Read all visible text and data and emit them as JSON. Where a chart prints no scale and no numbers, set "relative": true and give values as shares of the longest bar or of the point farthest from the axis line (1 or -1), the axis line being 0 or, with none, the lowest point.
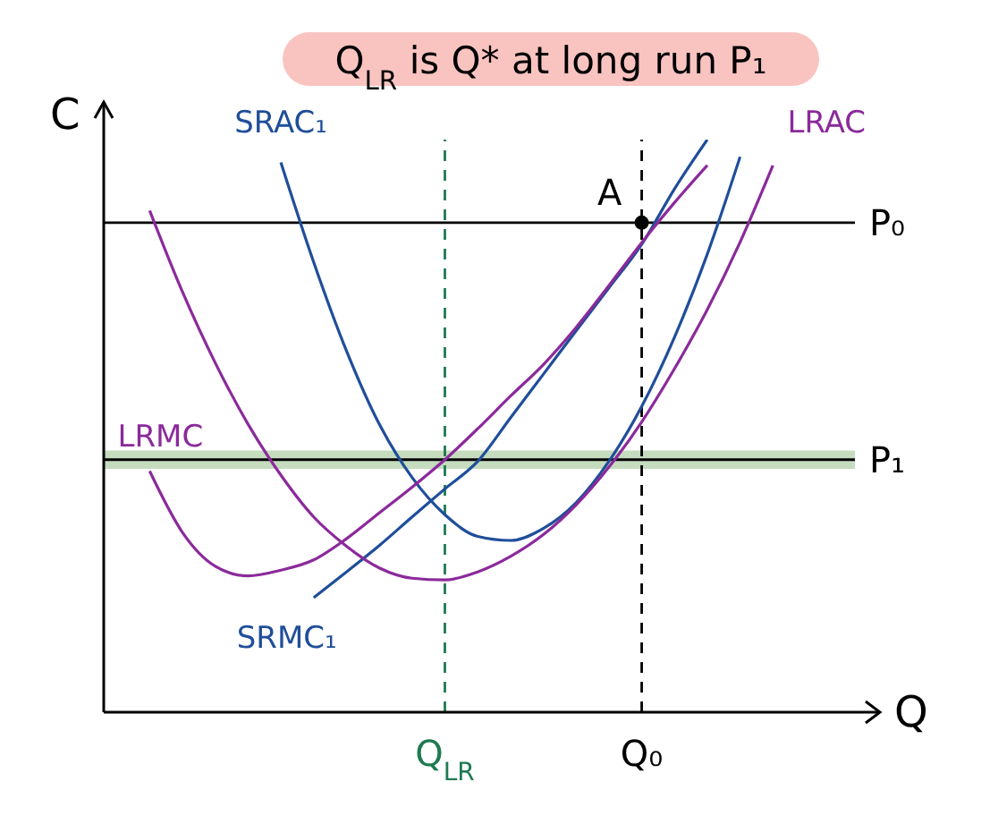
{
  "chart_data": {
    "type": "line",
    "relative": true,
    "title": "Q$_{LR}$ is Q* at long run P₁",
    "xlabel": "Q",
    "ylabel": "C",
    "categories": [
      null,
      null,
      null,
      null,
      null,
      null,
      null,
      null,
      null,
      null,
      "Q$_{LR}$",
      null,
      null,
      null,
      null,
      null,
      "Q₀",
      null,
      null,
      null,
      null,
      null
    ],
    "series": [
      {
        "name": "SRAC₁",
        "color": "#1f4e9a",
        "values": [
          null,
          null,
          null,
          null,
          null,
          0.96,
          0.786,
          0.631,
          0.503,
          0.41,
          0.345,
          0.307,
          0.3,
          0.321,
          0.366,
          0.438,
          0.534,
          0.655,
          0.8,
          0.97,
          null,
          null
        ]
      },
      {
        "name": "SRMC₁",
        "color": "#1f4e9a",
        "values": [
          null,
          null,
          null,
          null,
          null,
          null,
          0.2,
          0.245,
          0.291,
          0.341,
          0.39,
          0.438,
          0.514,
          0.59,
          0.666,
          0.741,
          0.817,
          0.914,
          1,
          null,
          null,
          null
        ]
      },
      {
        "name": "LRAC",
        "color": "#8b2a9b",
        "values": [
          null,
          0.876,
          0.734,
          0.61,
          0.503,
          0.414,
          0.341,
          0.29,
          0.252,
          0.234,
          0.231,
          0.245,
          0.272,
          0.31,
          0.362,
          0.428,
          0.507,
          0.6,
          0.703,
          0.821,
          0.955,
          null
        ]
      },
      {
        "name": "LRMC",
        "color": "#8b2a9b",
        "values": [
          null,
          0.421,
          0.314,
          0.255,
          0.238,
          0.248,
          0.266,
          0.303,
          0.348,
          0.393,
          0.441,
          0.495,
          0.552,
          0.607,
          0.672,
          0.745,
          0.82,
          0.89,
          0.955,
          null,
          null,
          null
        ]
      }
    ],
    "ref_lines": [
      {
        "axis": "y",
        "value": 0.855,
        "label": "P₀",
        "color": "#000000"
      },
      {
        "axis": "y",
        "value": 0.441,
        "label": "P₁",
        "color": "#000000"
      },
      {
        "axis": "x",
        "value": "Q$_{LR}$",
        "color": "#1e7a50",
        "line_style": "dashed"
      },
      {
        "axis": "x",
        "value": "Q₀",
        "color": "#000000",
        "line_style": "dashed"
      }
    ],
    "bands": [
      {
        "axis": "y",
        "from": 0.425,
        "to": 0.457,
        "color": "#c5dcbf"
      }
    ],
    "annotations": [
      {
        "text": "A",
        "x": "Q₀",
        "y": 0.855
      }
    ],
    "marker": "none",
    "line_style": "solid"
  }
}
